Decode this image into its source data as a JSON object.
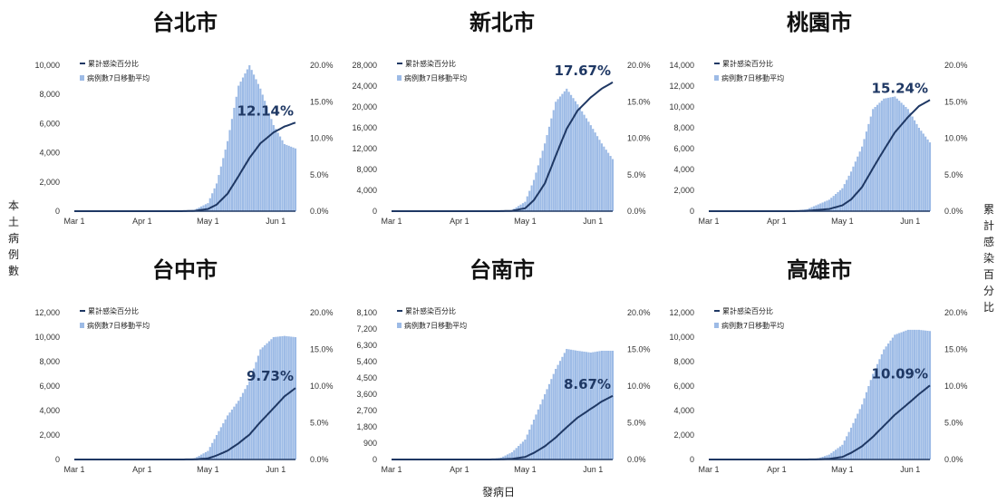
{
  "figure": {
    "y_axis_label": "本土病例數",
    "y2_axis_label": "累計感染百分比",
    "x_axis_label": "發病日"
  },
  "colors": {
    "bar": "#9dbbe6",
    "line": "#1f3864",
    "pct_text": "#1f3864",
    "axis_text": "#333333"
  },
  "legend": {
    "line_label": "累計感染百分比",
    "bar_label": "病例數7日移動平均"
  },
  "chart_data": [
    {
      "type": "bar",
      "title": "台北市",
      "x_ticks": [
        "Mar 1",
        "Apr 1",
        "May 1",
        "Jun 1"
      ],
      "y_ticks": [
        "0",
        "2,000",
        "4,000",
        "6,000",
        "8,000",
        "10,000"
      ],
      "ylim": [
        0,
        10000
      ],
      "y2_ticks": [
        "0.0%",
        "5.0%",
        "10.0%",
        "15.0%",
        "20.0%"
      ],
      "y2lim": [
        0,
        20
      ],
      "series": [
        {
          "x": [
            "Apr 25",
            "May 1",
            "May 5",
            "May 10",
            "May 15",
            "May 20",
            "May 25",
            "May 31",
            "Jun 5",
            "Jun 10"
          ],
          "values": [
            100,
            550,
            1900,
            4800,
            8600,
            10000,
            8400,
            5900,
            4600,
            4300
          ]
        },
        {
          "x": [
            "Apr 25",
            "May 1",
            "May 5",
            "May 10",
            "May 15",
            "May 20",
            "May 25",
            "May 31",
            "Jun 5",
            "Jun 10"
          ],
          "values": [
            0.05,
            0.3,
            0.9,
            2.4,
            4.8,
            7.3,
            9.3,
            10.8,
            11.6,
            12.14
          ]
        }
      ],
      "annotation": "12.14%"
    },
    {
      "type": "bar",
      "title": "新北市",
      "x_ticks": [
        "Mar 1",
        "Apr 1",
        "May 1",
        "Jun 1"
      ],
      "y_ticks": [
        "0",
        "4,000",
        "8,000",
        "12,000",
        "16,000",
        "20,000",
        "24,000",
        "28,000"
      ],
      "ylim": [
        0,
        28000
      ],
      "y2_ticks": [
        "0.0%",
        "5.0%",
        "10.0%",
        "15.0%",
        "20.0%"
      ],
      "y2lim": [
        0,
        20
      ],
      "series": [
        {
          "x": [
            "Apr 25",
            "May 1",
            "May 5",
            "May 10",
            "May 15",
            "May 20",
            "May 25",
            "May 31",
            "Jun 5",
            "Jun 10"
          ],
          "values": [
            200,
            1800,
            6000,
            13000,
            21000,
            23500,
            20500,
            16500,
            13000,
            10000
          ]
        },
        {
          "x": [
            "Apr 25",
            "May 1",
            "May 5",
            "May 10",
            "May 15",
            "May 20",
            "May 25",
            "May 31",
            "Jun 5",
            "Jun 10"
          ],
          "values": [
            0.05,
            0.4,
            1.5,
            3.8,
            7.6,
            11.3,
            13.8,
            15.6,
            16.8,
            17.67
          ]
        }
      ],
      "annotation": "17.67%"
    },
    {
      "type": "bar",
      "title": "桃園市",
      "x_ticks": [
        "Mar 1",
        "Apr 1",
        "May 1",
        "Jun 1"
      ],
      "y_ticks": [
        "0",
        "2,000",
        "4,000",
        "6,000",
        "8,000",
        "10,000",
        "12,000",
        "14,000"
      ],
      "ylim": [
        0,
        14000
      ],
      "y2_ticks": [
        "0.0%",
        "5.0%",
        "10.0%",
        "15.0%",
        "20.0%"
      ],
      "y2lim": [
        0,
        20
      ],
      "series": [
        {
          "x": [
            "Apr 15",
            "Apr 25",
            "May 1",
            "May 5",
            "May 10",
            "May 15",
            "May 20",
            "May 25",
            "May 31",
            "Jun 5",
            "Jun 10"
          ],
          "values": [
            200,
            1100,
            2200,
            3800,
            6200,
            9800,
            10800,
            11000,
            9800,
            8000,
            6600
          ]
        },
        {
          "x": [
            "Apr 15",
            "Apr 25",
            "May 1",
            "May 5",
            "May 10",
            "May 15",
            "May 20",
            "May 25",
            "May 31",
            "Jun 5",
            "Jun 10"
          ],
          "values": [
            0.05,
            0.3,
            0.8,
            1.6,
            3.3,
            5.9,
            8.4,
            10.8,
            12.9,
            14.4,
            15.24
          ]
        }
      ],
      "annotation": "15.24%"
    },
    {
      "type": "bar",
      "title": "台中市",
      "x_ticks": [
        "Mar 1",
        "Apr 1",
        "May 1",
        "Jun 1"
      ],
      "y_ticks": [
        "0",
        "2,000",
        "4,000",
        "6,000",
        "8,000",
        "10,000",
        "12,000"
      ],
      "ylim": [
        0,
        12000
      ],
      "y2_ticks": [
        "0.0%",
        "5.0%",
        "10.0%",
        "15.0%",
        "20.0%"
      ],
      "y2lim": [
        0,
        20
      ],
      "series": [
        {
          "x": [
            "Apr 25",
            "May 1",
            "May 5",
            "May 10",
            "May 15",
            "May 20",
            "May 25",
            "May 31",
            "Jun 5",
            "Jun 10"
          ],
          "values": [
            100,
            700,
            2000,
            3600,
            4800,
            6400,
            9000,
            10000,
            10100,
            10000
          ]
        },
        {
          "x": [
            "Apr 25",
            "May 1",
            "May 5",
            "May 10",
            "May 15",
            "May 20",
            "May 25",
            "May 31",
            "Jun 5",
            "Jun 10"
          ],
          "values": [
            0.02,
            0.15,
            0.55,
            1.2,
            2.2,
            3.4,
            5.1,
            7.0,
            8.6,
            9.73
          ]
        }
      ],
      "annotation": "9.73%"
    },
    {
      "type": "bar",
      "title": "台南市",
      "x_ticks": [
        "Mar 1",
        "Apr 1",
        "May 1",
        "Jun 1"
      ],
      "y_ticks": [
        "0",
        "900",
        "1,800",
        "2,700",
        "3,600",
        "4,500",
        "5,400",
        "6,300",
        "7,200",
        "8,100"
      ],
      "ylim": [
        0,
        8100
      ],
      "y2_ticks": [
        "0.0%",
        "5.0%",
        "10.0%",
        "15.0%",
        "20.0%"
      ],
      "y2lim": [
        0,
        20
      ],
      "series": [
        {
          "x": [
            "Apr 20",
            "Apr 25",
            "May 1",
            "May 5",
            "May 10",
            "May 15",
            "May 20",
            "May 25",
            "May 31",
            "Jun 5",
            "Jun 10"
          ],
          "values": [
            100,
            400,
            1100,
            2200,
            3600,
            5000,
            6100,
            6000,
            5900,
            6000,
            6000
          ]
        },
        {
          "x": [
            "Apr 20",
            "Apr 25",
            "May 1",
            "May 5",
            "May 10",
            "May 15",
            "May 20",
            "May 25",
            "May 31",
            "Jun 5",
            "Jun 10"
          ],
          "values": [
            0.02,
            0.08,
            0.35,
            0.9,
            1.8,
            3.0,
            4.4,
            5.7,
            6.9,
            7.9,
            8.67
          ]
        }
      ],
      "annotation": "8.67%"
    },
    {
      "type": "bar",
      "title": "高雄市",
      "x_ticks": [
        "Mar 1",
        "Apr 1",
        "May 1",
        "Jun 1"
      ],
      "y_ticks": [
        "0",
        "2,000",
        "4,000",
        "6,000",
        "8,000",
        "10,000",
        "12,000"
      ],
      "ylim": [
        0,
        12000
      ],
      "y2_ticks": [
        "0.0%",
        "5.0%",
        "10.0%",
        "15.0%",
        "20.0%"
      ],
      "y2lim": [
        0,
        20
      ],
      "series": [
        {
          "x": [
            "Apr 20",
            "Apr 25",
            "May 1",
            "May 5",
            "May 10",
            "May 15",
            "May 20",
            "May 25",
            "May 31",
            "Jun 5",
            "Jun 10"
          ],
          "values": [
            100,
            400,
            1200,
            2600,
            4500,
            7000,
            9000,
            10200,
            10600,
            10600,
            10500
          ]
        },
        {
          "x": [
            "Apr 20",
            "Apr 25",
            "May 1",
            "May 5",
            "May 10",
            "May 15",
            "May 20",
            "May 25",
            "May 31",
            "Jun 5",
            "Jun 10"
          ],
          "values": [
            0.02,
            0.08,
            0.35,
            0.9,
            1.8,
            3.1,
            4.6,
            6.1,
            7.6,
            8.9,
            10.09
          ]
        }
      ],
      "annotation": "10.09%"
    }
  ]
}
